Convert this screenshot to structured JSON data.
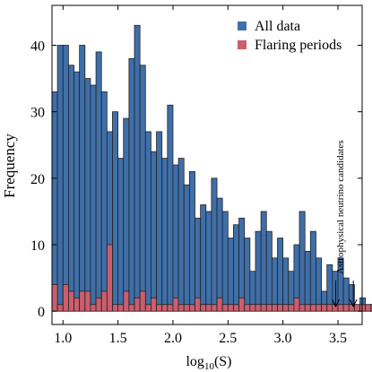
{
  "chart_data": {
    "type": "bar",
    "title": "",
    "xlabel_main": "log",
    "xlabel_sub": "10",
    "xlabel_tail": "(S)",
    "ylabel": "Frequency",
    "xlim": [
      0.9,
      3.72
    ],
    "ylim": [
      -2,
      46
    ],
    "bin_start": 0.9,
    "bin_width": 0.05,
    "x_ticks": [
      1.0,
      1.5,
      2.0,
      2.5,
      3.0,
      3.5
    ],
    "x_tick_labels": [
      "1.0",
      "1.5",
      "2.0",
      "2.5",
      "3.0",
      "3.5"
    ],
    "y_ticks": [
      0,
      10,
      20,
      30,
      40
    ],
    "y_tick_labels": [
      "0",
      "10",
      "20",
      "30",
      "40"
    ],
    "legend_position": "top-right",
    "series": [
      {
        "name": "All data",
        "color": "#3f6fa9",
        "values": [
          33,
          40,
          40,
          37,
          36,
          40,
          35,
          34,
          39,
          33,
          27,
          30,
          23,
          29,
          38,
          43,
          37,
          27,
          24,
          27,
          23,
          31,
          22,
          23,
          19,
          21,
          14,
          16,
          15,
          20,
          17,
          15,
          11,
          13,
          14,
          11,
          6,
          12,
          15,
          12,
          8,
          11,
          8,
          6,
          10,
          15,
          9,
          12,
          8,
          3,
          7,
          6,
          8,
          5,
          4,
          1,
          2,
          1,
          1,
          0,
          1,
          0
        ]
      },
      {
        "name": "Flaring periods",
        "color": "#cc5d6d",
        "values": [
          4,
          1,
          4,
          3,
          2,
          3,
          3,
          1,
          2,
          3,
          10,
          1,
          1,
          3,
          1,
          2,
          3,
          1,
          2,
          1,
          1,
          1,
          2,
          1,
          1,
          1,
          2,
          1,
          1,
          1,
          2,
          1,
          1,
          1,
          2,
          1,
          1,
          1,
          1,
          1,
          1,
          1,
          1,
          1,
          2,
          1,
          1,
          1,
          1,
          1,
          1,
          1,
          1,
          1,
          1,
          1,
          1,
          1,
          1,
          1,
          1,
          1
        ]
      }
    ],
    "annotations": [
      {
        "text": "Astrophysical neutrino candidates",
        "arrows_x": [
          3.48,
          3.64
        ]
      }
    ]
  }
}
